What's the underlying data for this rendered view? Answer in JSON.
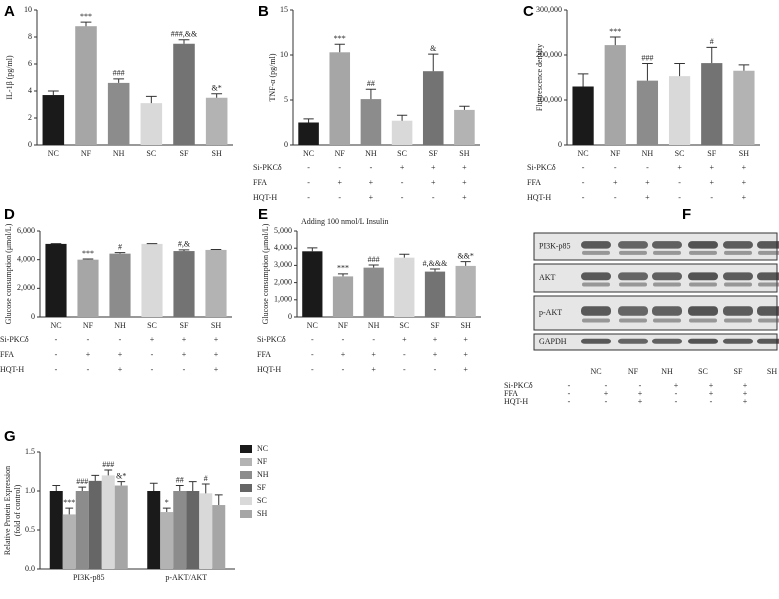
{
  "chart_data": [
    {
      "type": "bar",
      "panel": "A",
      "ylabel": "IL-1β (pg/ml)",
      "categories": [
        "NC",
        "NF",
        "NH",
        "SC",
        "SF",
        "SH"
      ],
      "values": [
        3.7,
        8.8,
        4.6,
        3.1,
        7.5,
        3.5
      ],
      "errors": [
        0.3,
        0.3,
        0.3,
        0.5,
        0.3,
        0.3
      ],
      "annotations": [
        null,
        "***",
        "###",
        null,
        "###,&&",
        "&*"
      ],
      "colors": [
        "#1a1a1a",
        "#a6a6a6",
        "#8c8c8c",
        "#d9d9d9",
        "#737373",
        "#b3b3b3"
      ],
      "ylim": [
        0,
        10
      ],
      "yticks": [
        0,
        2,
        4,
        6,
        8,
        10
      ]
    },
    {
      "type": "bar",
      "panel": "B",
      "ylabel": "TNF-α (pg/ml)",
      "categories": [
        "NC",
        "NF",
        "NH",
        "SC",
        "SF",
        "SH"
      ],
      "values": [
        2.5,
        10.3,
        5.1,
        2.7,
        8.2,
        3.9
      ],
      "errors": [
        0.4,
        0.9,
        1.1,
        0.6,
        1.9,
        0.4
      ],
      "annotations": [
        null,
        "***",
        "##",
        null,
        "&",
        null
      ],
      "colors": [
        "#1a1a1a",
        "#a6a6a6",
        "#8c8c8c",
        "#d9d9d9",
        "#737373",
        "#b3b3b3"
      ],
      "ylim": [
        0,
        15
      ],
      "yticks": [
        0,
        5,
        10,
        15
      ],
      "conditions": [
        {
          "label": "Si-PKCδ",
          "values": [
            "-",
            "-",
            "-",
            "+",
            "+",
            "+"
          ]
        },
        {
          "label": "FFA",
          "values": [
            "-",
            "+",
            "+",
            "-",
            "+",
            "+"
          ]
        },
        {
          "label": "HQT-H",
          "values": [
            "-",
            "-",
            "+",
            "-",
            "-",
            "+"
          ]
        }
      ]
    },
    {
      "type": "bar",
      "panel": "C",
      "ylabel": "Fluorescence density",
      "categories": [
        "NC",
        "NF",
        "NH",
        "SC",
        "SF",
        "SH"
      ],
      "values": [
        130000,
        222000,
        143000,
        153000,
        182000,
        165000
      ],
      "errors": [
        28000,
        18000,
        38000,
        28000,
        35000,
        13000
      ],
      "annotations": [
        null,
        "***",
        "###",
        null,
        "#",
        null
      ],
      "colors": [
        "#1a1a1a",
        "#a6a6a6",
        "#8c8c8c",
        "#d9d9d9",
        "#737373",
        "#b3b3b3"
      ],
      "ylim": [
        0,
        300000
      ],
      "yticks": [
        0,
        {
          "value": 100000,
          "label": "100,000"
        },
        {
          "value": 200000,
          "label": "200,000"
        },
        {
          "value": 300000,
          "label": "300,000"
        }
      ],
      "conditions": [
        {
          "label": "Si-PKCδ",
          "values": [
            "-",
            "-",
            "-",
            "+",
            "+",
            "+"
          ]
        },
        {
          "label": "FFA",
          "values": [
            "-",
            "+",
            "+",
            "-",
            "+",
            "+"
          ]
        },
        {
          "label": "HQT-H",
          "values": [
            "-",
            "-",
            "+",
            "-",
            "-",
            "+"
          ]
        }
      ]
    },
    {
      "type": "bar",
      "panel": "D",
      "ylabel": "Glucose consumption (μmol/L)",
      "categories": [
        "NC",
        "NF",
        "NH",
        "SC",
        "SF",
        "SH"
      ],
      "values": [
        5100,
        4000,
        4420,
        5100,
        4600,
        4680
      ],
      "errors": [
        20,
        50,
        70,
        20,
        80,
        30
      ],
      "annotations": [
        null,
        "***",
        "#",
        null,
        "#,&",
        null
      ],
      "colors": [
        "#1a1a1a",
        "#a6a6a6",
        "#8c8c8c",
        "#d9d9d9",
        "#737373",
        "#b3b3b3"
      ],
      "ylim": [
        0,
        6000
      ],
      "yticks": [
        0,
        {
          "value": 2000,
          "label": "2,000"
        },
        {
          "value": 4000,
          "label": "4,000"
        },
        {
          "value": 6000,
          "label": "6,000"
        }
      ],
      "conditions": [
        {
          "label": "Si-PKCδ",
          "values": [
            "-",
            "-",
            "-",
            "+",
            "+",
            "+"
          ]
        },
        {
          "label": "FFA",
          "values": [
            "-",
            "+",
            "+",
            "-",
            "+",
            "+"
          ]
        },
        {
          "label": "HQT-H",
          "values": [
            "-",
            "-",
            "+",
            "-",
            "-",
            "+"
          ]
        }
      ]
    },
    {
      "type": "bar",
      "panel": "E",
      "title": "Adding 100 nmol/L Insulin",
      "ylabel": "Glucose consumption (μmol/L)",
      "categories": [
        "NC",
        "NF",
        "NH",
        "SC",
        "SF",
        "SH"
      ],
      "values": [
        3820,
        2360,
        2870,
        3450,
        2640,
        2970
      ],
      "errors": [
        200,
        150,
        150,
        200,
        150,
        250
      ],
      "annotations": [
        null,
        "***",
        "###",
        null,
        "#,&&&",
        "&&*"
      ],
      "colors": [
        "#1a1a1a",
        "#a6a6a6",
        "#8c8c8c",
        "#d9d9d9",
        "#737373",
        "#b3b3b3"
      ],
      "ylim": [
        0,
        5000
      ],
      "yticks": [
        0,
        {
          "value": 1000,
          "label": "1,000"
        },
        {
          "value": 2000,
          "label": "2,000"
        },
        {
          "value": 3000,
          "label": "3,000"
        },
        {
          "value": 4000,
          "label": "4,000"
        },
        {
          "value": 5000,
          "label": "5,000"
        }
      ],
      "conditions": [
        {
          "label": "Si-PKCδ",
          "values": [
            "-",
            "-",
            "-",
            "+",
            "+",
            "+"
          ]
        },
        {
          "label": "FFA",
          "values": [
            "-",
            "+",
            "+",
            "-",
            "+",
            "+"
          ]
        },
        {
          "label": "HQT-H",
          "values": [
            "-",
            "-",
            "+",
            "-",
            "-",
            "+"
          ]
        }
      ]
    },
    {
      "type": "grouped_bar",
      "panel": "G",
      "ylabel": [
        "Relative Protein Expression",
        "(fold of control)"
      ],
      "categories": [
        "PI3K-p85",
        "p-AKT/AKT"
      ],
      "legend": "right",
      "series": [
        {
          "name": "NC",
          "color": "#1a1a1a",
          "values": [
            1.0,
            1.0
          ],
          "errors": [
            0.07,
            0.1
          ],
          "annotations": [
            null,
            null
          ]
        },
        {
          "name": "NF",
          "color": "#b3b3b3",
          "values": [
            0.7,
            0.73
          ],
          "errors": [
            0.08,
            0.05
          ],
          "annotations": [
            "***",
            "*"
          ]
        },
        {
          "name": "NH",
          "color": "#8c8c8c",
          "values": [
            1.0,
            1.0
          ],
          "errors": [
            0.05,
            0.07
          ],
          "annotations": [
            "###",
            "##"
          ]
        },
        {
          "name": "SF",
          "color": "#666666",
          "values": [
            1.13,
            1.0
          ],
          "errors": [
            0.07,
            0.12
          ],
          "annotations": [
            null,
            null
          ]
        },
        {
          "name": "SC",
          "color": "#d9d9d9",
          "values": [
            1.2,
            0.97
          ],
          "errors": [
            0.07,
            0.12
          ],
          "annotations": [
            "###",
            "#"
          ]
        },
        {
          "name": "SH",
          "color": "#a6a6a6",
          "values": [
            1.07,
            0.82
          ],
          "errors": [
            0.05,
            0.13
          ],
          "annotations": [
            "&*",
            null
          ]
        }
      ],
      "ylim": [
        0,
        1.5
      ],
      "yticks": [
        {
          "value": 0,
          "label": "0.0"
        },
        0.5,
        {
          "value": 1,
          "label": "1.0"
        },
        1.5
      ]
    }
  ],
  "blot": {
    "panel": "F",
    "rows": [
      "PI3K-p85",
      "AKT",
      "p-AKT",
      "GAPDH"
    ],
    "lanes": [
      "NC",
      "NF",
      "NH",
      "SC",
      "SF",
      "SH"
    ],
    "conditions": [
      {
        "label": "Si-PKCδ",
        "values": [
          "-",
          "-",
          "-",
          "+",
          "+",
          "+"
        ]
      },
      {
        "label": "FFA",
        "values": [
          "-",
          "+",
          "+",
          "-",
          "+",
          "+"
        ]
      },
      {
        "label": "HQT-H",
        "values": [
          "-",
          "-",
          "+",
          "-",
          "-",
          "+"
        ]
      }
    ]
  }
}
